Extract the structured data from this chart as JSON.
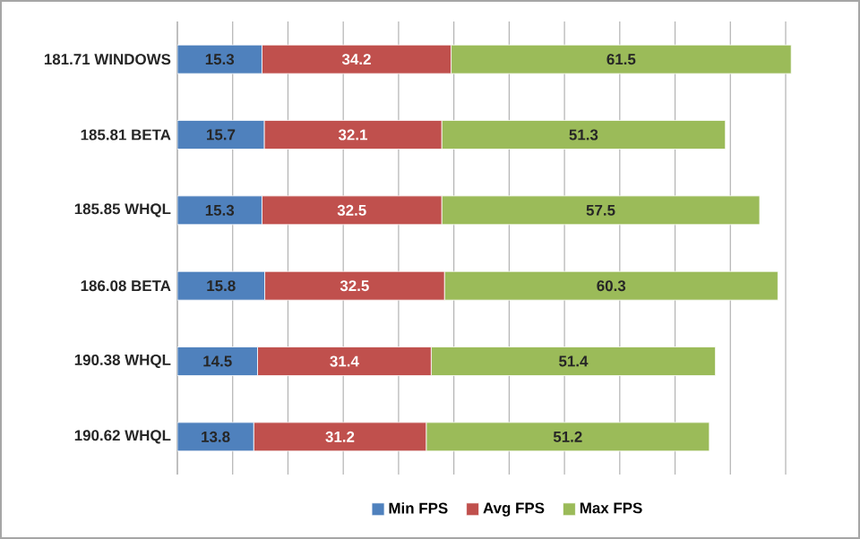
{
  "chart_data": {
    "type": "bar",
    "orientation": "horizontal",
    "stacked": true,
    "data_labels": true,
    "grid": "x",
    "legend": "bottom",
    "tick_labels": "y",
    "categories": [
      "181.71 WINDOWS",
      "185.81 BETA",
      "185.85 WHQL",
      "186.08 BETA",
      "190.38 WHQL",
      "190.62 WHQL"
    ],
    "series": [
      {
        "name": "Min FPS",
        "color": "#4f81bd",
        "values": [
          15.3,
          15.7,
          15.3,
          15.8,
          14.5,
          13.8
        ]
      },
      {
        "name": "Avg FPS",
        "color": "#c0504d",
        "values": [
          34.2,
          32.1,
          32.5,
          32.5,
          31.4,
          31.2
        ]
      },
      {
        "name": "Max FPS",
        "color": "#9bbb59",
        "values": [
          61.5,
          51.3,
          57.5,
          60.3,
          51.4,
          51.2
        ]
      }
    ]
  }
}
